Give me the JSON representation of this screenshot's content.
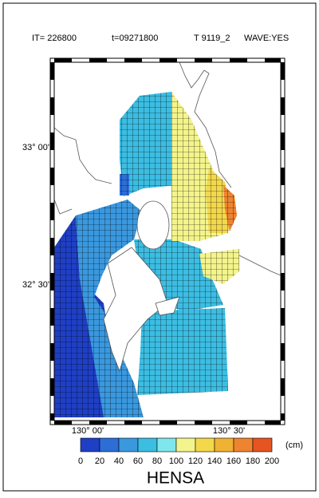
{
  "header": {
    "iteration": "IT= 226800",
    "time": "t=09271800",
    "case": "T 9119_2",
    "wave": "WAVE:YES"
  },
  "map": {
    "lat_labels": [
      "33° 00'",
      "32° 30'"
    ],
    "lon_labels": [
      "130° 00'",
      "130° 30'"
    ]
  },
  "colorbar": {
    "colors": [
      "#1f3fc4",
      "#2c6ed6",
      "#3a98de",
      "#3cbde2",
      "#7fe6ec",
      "#f4f48c",
      "#f3d84c",
      "#f0b232",
      "#ee8430",
      "#e65422"
    ],
    "ticks": [
      "0",
      "20",
      "40",
      "60",
      "80",
      "100",
      "120",
      "140",
      "160",
      "180",
      "200"
    ],
    "unit": "(cm)",
    "title": "HENSA"
  }
}
